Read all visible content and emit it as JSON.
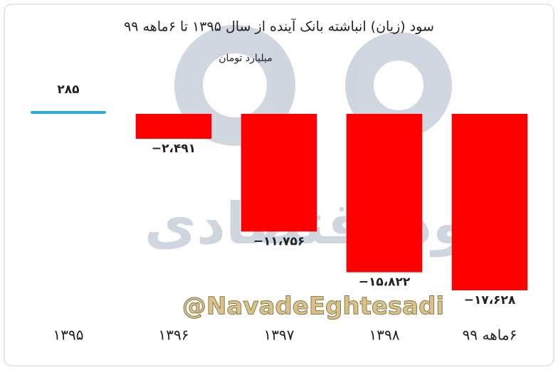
{
  "chart_data": {
    "type": "bar",
    "title": "سود (زیان) انباشته بانک آینده از سال ۱۳۹۵ تا ۶ماهه ۹۹",
    "subtitle": "میلیارد تومان",
    "watermark": "@NavadeEghtesadi",
    "logo_text": "نود اقتصادی",
    "categories": [
      "۱۳۹۵",
      "۱۳۹۶",
      "۱۳۹۷",
      "۱۳۹۸",
      "۶ماهه ۹۹"
    ],
    "values": [
      285,
      -2491,
      -11756,
      -15822,
      -17628
    ],
    "value_labels": [
      "۲۸۵",
      "−۲،۴۹۱",
      "−۱۱،۷۵۶",
      "−۱۵،۸۲۲",
      "−۱۷،۶۲۸"
    ],
    "colors": [
      "#29abe2",
      "#ff0000",
      "#ff0000",
      "#ff0000",
      "#ff0000"
    ]
  }
}
